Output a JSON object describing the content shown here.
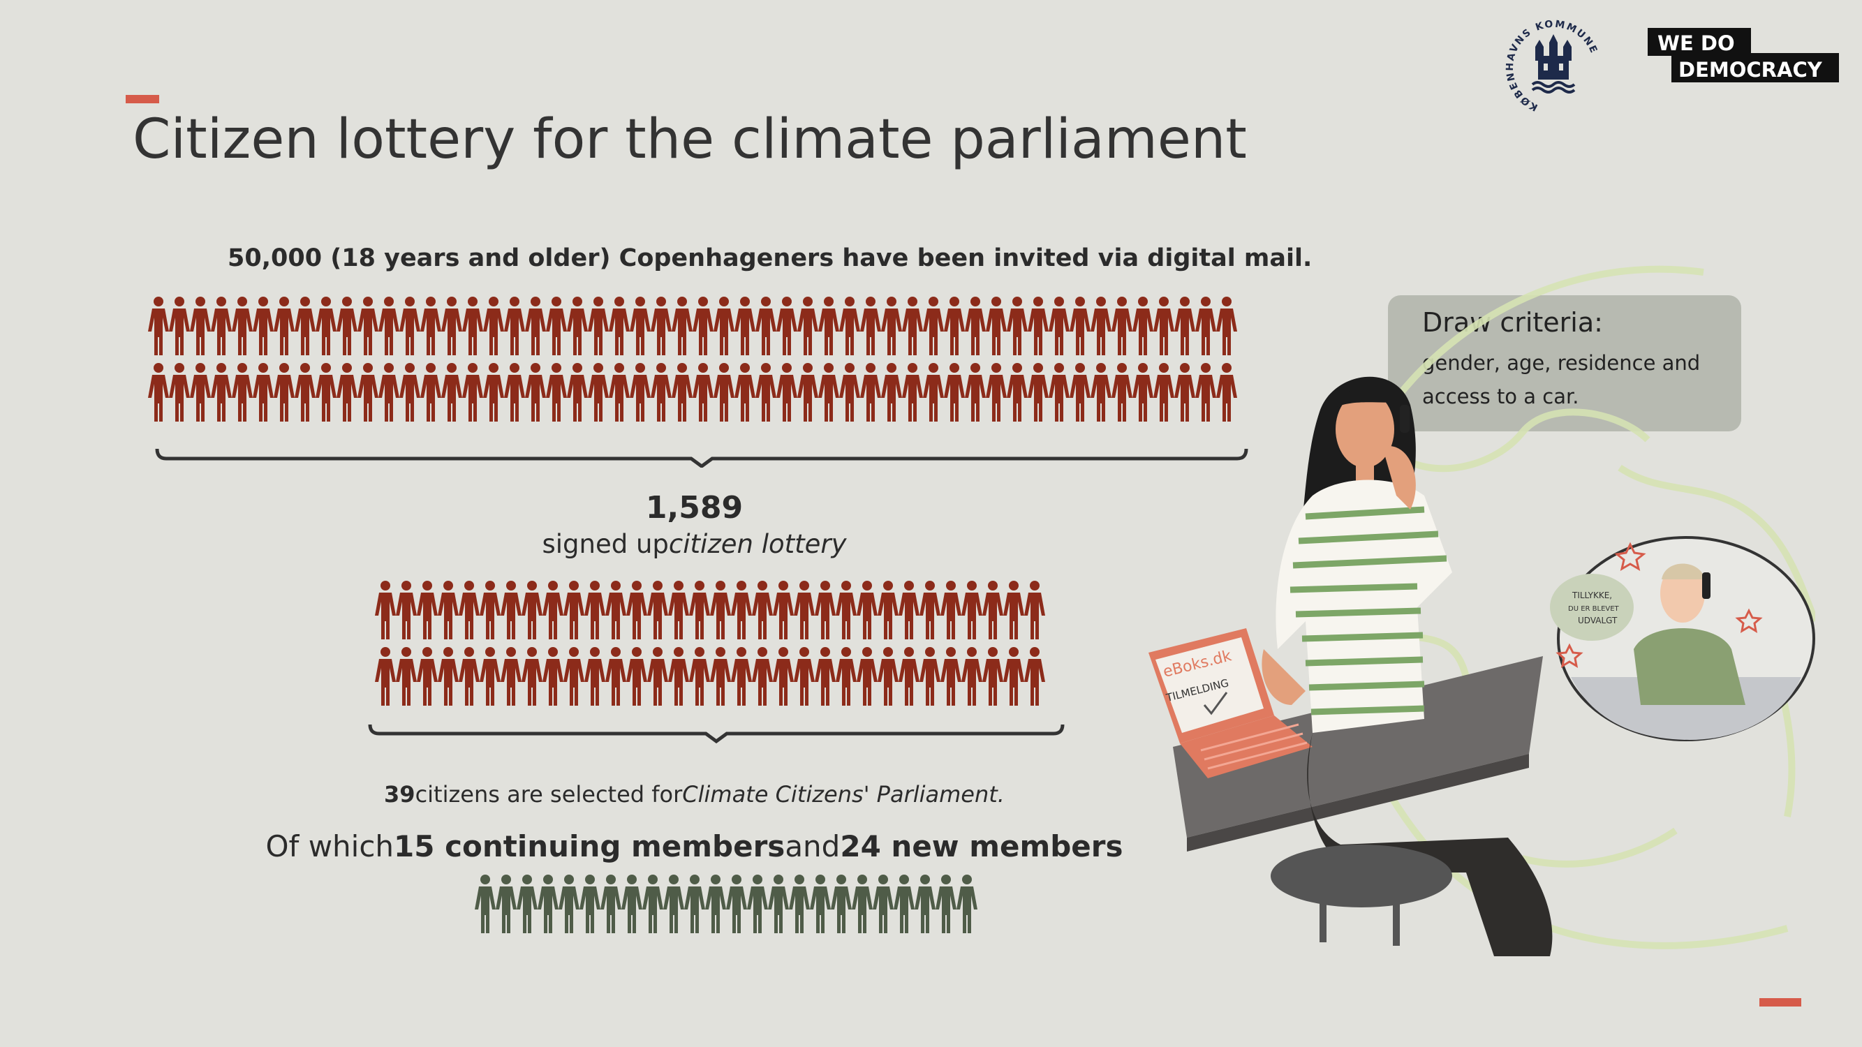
{
  "title": "Citizen lottery for the climate parliament",
  "invited_text": "50,000 (18 years and older) Copenhageners have been invited via digital mail.",
  "signed": {
    "count": "1,589",
    "label_a": "signed up",
    "label_b": "citizen lottery"
  },
  "selected": {
    "num": "39",
    "text": "citizens are selected for",
    "parliament": "Climate Citizens' Parliament."
  },
  "members": {
    "prefix": "Of which",
    "continuing": "15 continuing members",
    "and": "and",
    "new": "24 new members"
  },
  "criteria": {
    "title": "Draw criteria:",
    "text": "gender, age, residence and access to a car."
  },
  "logos": {
    "wdd_line1": "WE DO",
    "wdd_line2": "DEMOCRACY",
    "kk_text": "KØBENHAVNS KOMMUNE"
  },
  "illustration": {
    "eboks": "eBoks.dk",
    "tilmelding": "TILMELDING",
    "speech": [
      "TILLYKKE,",
      "DU ER BLEVET",
      "UDVALGT"
    ]
  },
  "figure_rows": {
    "invited_per_row": 52,
    "signed_per_row": 32,
    "selected_count": 24
  },
  "colors": {
    "background": "#e1e1dc",
    "accent": "#d65b4a",
    "figure_red": "#8c2b1a",
    "figure_green": "#4f5c48",
    "criteria_box": "#b7bab1"
  }
}
